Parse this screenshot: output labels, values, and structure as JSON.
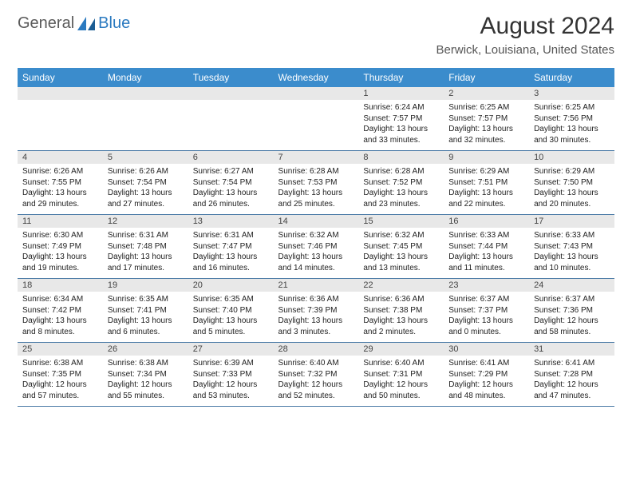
{
  "logo": {
    "text1": "General",
    "text2": "Blue"
  },
  "title": "August 2024",
  "location": "Berwick, Louisiana, United States",
  "colors": {
    "header_bg": "#3b8ccc",
    "header_text": "#ffffff",
    "daynum_bg": "#e8e8e8",
    "row_border": "#4a7aa6",
    "logo_gray": "#5a5a5a",
    "logo_blue": "#2b7ac0",
    "title_color": "#333333",
    "location_color": "#555555",
    "body_text": "#222222"
  },
  "dayNames": [
    "Sunday",
    "Monday",
    "Tuesday",
    "Wednesday",
    "Thursday",
    "Friday",
    "Saturday"
  ],
  "weeks": [
    [
      {
        "num": "",
        "sunrise": "",
        "sunset": "",
        "daylight": ""
      },
      {
        "num": "",
        "sunrise": "",
        "sunset": "",
        "daylight": ""
      },
      {
        "num": "",
        "sunrise": "",
        "sunset": "",
        "daylight": ""
      },
      {
        "num": "",
        "sunrise": "",
        "sunset": "",
        "daylight": ""
      },
      {
        "num": "1",
        "sunrise": "Sunrise: 6:24 AM",
        "sunset": "Sunset: 7:57 PM",
        "daylight": "Daylight: 13 hours and 33 minutes."
      },
      {
        "num": "2",
        "sunrise": "Sunrise: 6:25 AM",
        "sunset": "Sunset: 7:57 PM",
        "daylight": "Daylight: 13 hours and 32 minutes."
      },
      {
        "num": "3",
        "sunrise": "Sunrise: 6:25 AM",
        "sunset": "Sunset: 7:56 PM",
        "daylight": "Daylight: 13 hours and 30 minutes."
      }
    ],
    [
      {
        "num": "4",
        "sunrise": "Sunrise: 6:26 AM",
        "sunset": "Sunset: 7:55 PM",
        "daylight": "Daylight: 13 hours and 29 minutes."
      },
      {
        "num": "5",
        "sunrise": "Sunrise: 6:26 AM",
        "sunset": "Sunset: 7:54 PM",
        "daylight": "Daylight: 13 hours and 27 minutes."
      },
      {
        "num": "6",
        "sunrise": "Sunrise: 6:27 AM",
        "sunset": "Sunset: 7:54 PM",
        "daylight": "Daylight: 13 hours and 26 minutes."
      },
      {
        "num": "7",
        "sunrise": "Sunrise: 6:28 AM",
        "sunset": "Sunset: 7:53 PM",
        "daylight": "Daylight: 13 hours and 25 minutes."
      },
      {
        "num": "8",
        "sunrise": "Sunrise: 6:28 AM",
        "sunset": "Sunset: 7:52 PM",
        "daylight": "Daylight: 13 hours and 23 minutes."
      },
      {
        "num": "9",
        "sunrise": "Sunrise: 6:29 AM",
        "sunset": "Sunset: 7:51 PM",
        "daylight": "Daylight: 13 hours and 22 minutes."
      },
      {
        "num": "10",
        "sunrise": "Sunrise: 6:29 AM",
        "sunset": "Sunset: 7:50 PM",
        "daylight": "Daylight: 13 hours and 20 minutes."
      }
    ],
    [
      {
        "num": "11",
        "sunrise": "Sunrise: 6:30 AM",
        "sunset": "Sunset: 7:49 PM",
        "daylight": "Daylight: 13 hours and 19 minutes."
      },
      {
        "num": "12",
        "sunrise": "Sunrise: 6:31 AM",
        "sunset": "Sunset: 7:48 PM",
        "daylight": "Daylight: 13 hours and 17 minutes."
      },
      {
        "num": "13",
        "sunrise": "Sunrise: 6:31 AM",
        "sunset": "Sunset: 7:47 PM",
        "daylight": "Daylight: 13 hours and 16 minutes."
      },
      {
        "num": "14",
        "sunrise": "Sunrise: 6:32 AM",
        "sunset": "Sunset: 7:46 PM",
        "daylight": "Daylight: 13 hours and 14 minutes."
      },
      {
        "num": "15",
        "sunrise": "Sunrise: 6:32 AM",
        "sunset": "Sunset: 7:45 PM",
        "daylight": "Daylight: 13 hours and 13 minutes."
      },
      {
        "num": "16",
        "sunrise": "Sunrise: 6:33 AM",
        "sunset": "Sunset: 7:44 PM",
        "daylight": "Daylight: 13 hours and 11 minutes."
      },
      {
        "num": "17",
        "sunrise": "Sunrise: 6:33 AM",
        "sunset": "Sunset: 7:43 PM",
        "daylight": "Daylight: 13 hours and 10 minutes."
      }
    ],
    [
      {
        "num": "18",
        "sunrise": "Sunrise: 6:34 AM",
        "sunset": "Sunset: 7:42 PM",
        "daylight": "Daylight: 13 hours and 8 minutes."
      },
      {
        "num": "19",
        "sunrise": "Sunrise: 6:35 AM",
        "sunset": "Sunset: 7:41 PM",
        "daylight": "Daylight: 13 hours and 6 minutes."
      },
      {
        "num": "20",
        "sunrise": "Sunrise: 6:35 AM",
        "sunset": "Sunset: 7:40 PM",
        "daylight": "Daylight: 13 hours and 5 minutes."
      },
      {
        "num": "21",
        "sunrise": "Sunrise: 6:36 AM",
        "sunset": "Sunset: 7:39 PM",
        "daylight": "Daylight: 13 hours and 3 minutes."
      },
      {
        "num": "22",
        "sunrise": "Sunrise: 6:36 AM",
        "sunset": "Sunset: 7:38 PM",
        "daylight": "Daylight: 13 hours and 2 minutes."
      },
      {
        "num": "23",
        "sunrise": "Sunrise: 6:37 AM",
        "sunset": "Sunset: 7:37 PM",
        "daylight": "Daylight: 13 hours and 0 minutes."
      },
      {
        "num": "24",
        "sunrise": "Sunrise: 6:37 AM",
        "sunset": "Sunset: 7:36 PM",
        "daylight": "Daylight: 12 hours and 58 minutes."
      }
    ],
    [
      {
        "num": "25",
        "sunrise": "Sunrise: 6:38 AM",
        "sunset": "Sunset: 7:35 PM",
        "daylight": "Daylight: 12 hours and 57 minutes."
      },
      {
        "num": "26",
        "sunrise": "Sunrise: 6:38 AM",
        "sunset": "Sunset: 7:34 PM",
        "daylight": "Daylight: 12 hours and 55 minutes."
      },
      {
        "num": "27",
        "sunrise": "Sunrise: 6:39 AM",
        "sunset": "Sunset: 7:33 PM",
        "daylight": "Daylight: 12 hours and 53 minutes."
      },
      {
        "num": "28",
        "sunrise": "Sunrise: 6:40 AM",
        "sunset": "Sunset: 7:32 PM",
        "daylight": "Daylight: 12 hours and 52 minutes."
      },
      {
        "num": "29",
        "sunrise": "Sunrise: 6:40 AM",
        "sunset": "Sunset: 7:31 PM",
        "daylight": "Daylight: 12 hours and 50 minutes."
      },
      {
        "num": "30",
        "sunrise": "Sunrise: 6:41 AM",
        "sunset": "Sunset: 7:29 PM",
        "daylight": "Daylight: 12 hours and 48 minutes."
      },
      {
        "num": "31",
        "sunrise": "Sunrise: 6:41 AM",
        "sunset": "Sunset: 7:28 PM",
        "daylight": "Daylight: 12 hours and 47 minutes."
      }
    ]
  ]
}
